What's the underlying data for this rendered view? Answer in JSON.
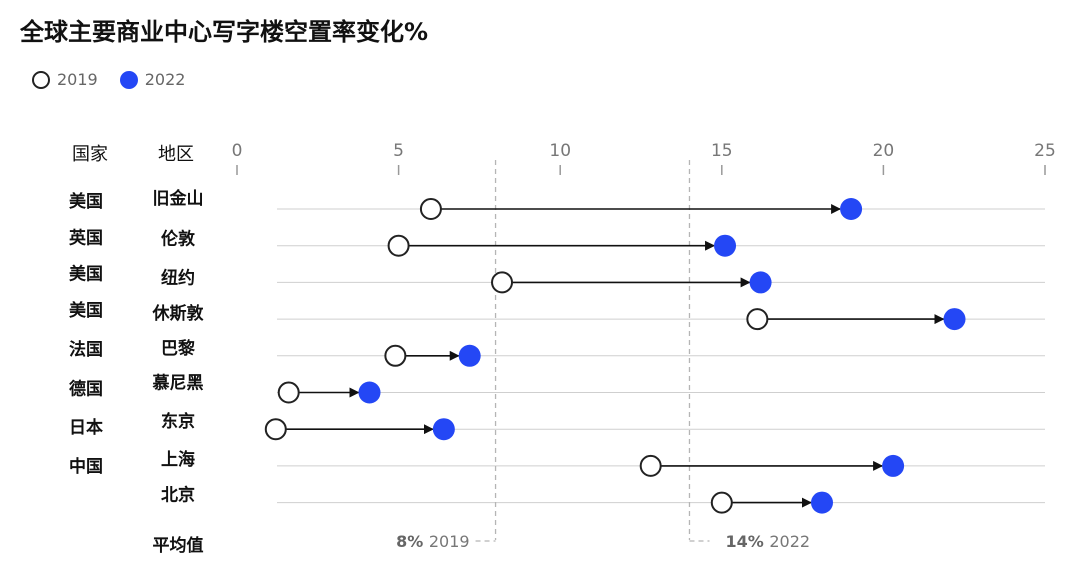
{
  "title": "全球主要商业中心写字楼空置率变化%",
  "legend": [
    {
      "label": "2019",
      "style": "open"
    },
    {
      "label": "2022",
      "style": "filled"
    }
  ],
  "colors": {
    "year_2019_fill": "#ffffff",
    "year_2022_fill": "#2447f5",
    "stroke": "#222222",
    "grid": "#cfcfcf",
    "ref_line": "#b5b5b5"
  },
  "column_headers": {
    "country": "国家",
    "city": "地区"
  },
  "chart_data": {
    "type": "dumbbell",
    "title": "全球主要商业中心写字楼空置率变化%",
    "xlim": [
      0,
      25
    ],
    "xticks": [
      0,
      5,
      10,
      15,
      20,
      25
    ],
    "series": [
      {
        "name": "2019",
        "values": [
          6.0,
          5.0,
          8.2,
          16.1,
          4.9,
          1.6,
          1.2,
          12.8,
          15.0
        ]
      },
      {
        "name": "2022",
        "values": [
          19.0,
          15.1,
          16.2,
          22.2,
          7.2,
          4.1,
          6.4,
          20.3,
          18.1
        ]
      }
    ],
    "rows": [
      {
        "country": "美国",
        "city": "旧金山"
      },
      {
        "country": "英国",
        "city": "伦敦"
      },
      {
        "country": "美国",
        "city": "纽约"
      },
      {
        "country": "美国",
        "city": "休斯敦"
      },
      {
        "country": "法国",
        "city": "巴黎"
      },
      {
        "country": "德国",
        "city": "慕尼黑"
      },
      {
        "country": "日本",
        "city": "东京"
      },
      {
        "country": "中国",
        "city": "上海"
      },
      {
        "country": "",
        "city": "北京"
      }
    ],
    "averages": {
      "row_label": "平均值",
      "lines": [
        {
          "value": 8,
          "value_label": "8%",
          "year_label": "2019"
        },
        {
          "value": 14,
          "value_label": "14%",
          "year_label": "2022"
        }
      ]
    }
  }
}
